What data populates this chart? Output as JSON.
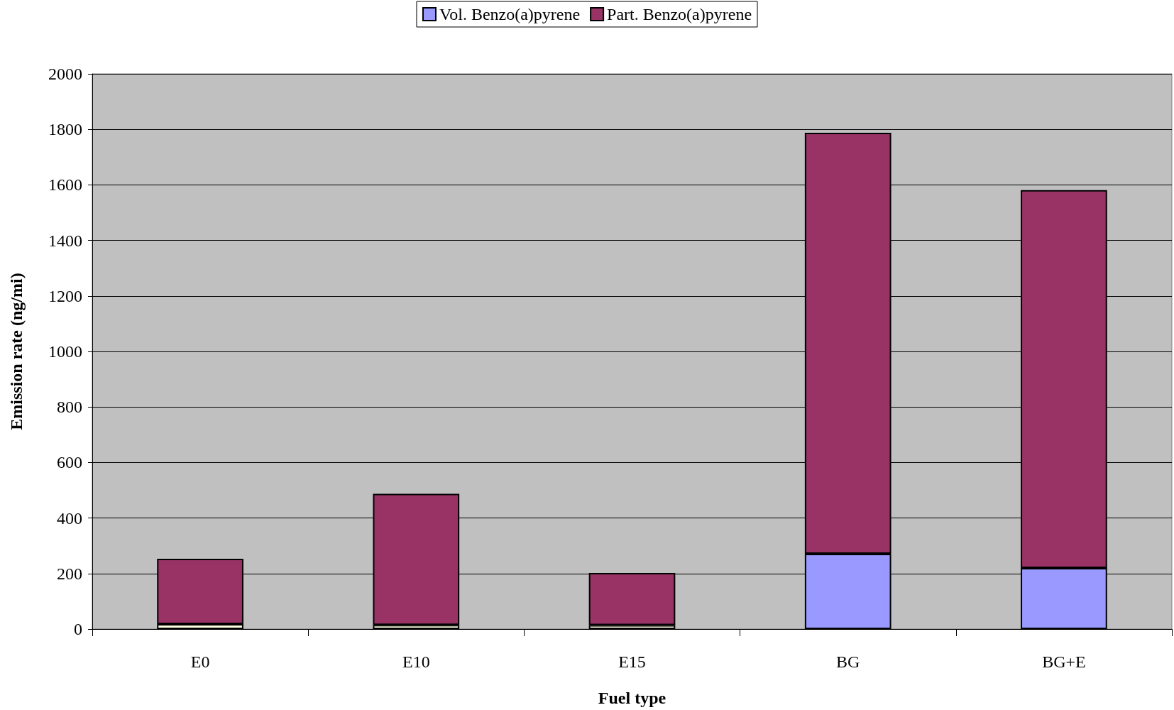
{
  "chart_data": {
    "type": "bar",
    "stacked": true,
    "xlabel": "Fuel type",
    "ylabel": "Emission rate (ng/mi)",
    "categories": [
      "E0",
      "E10",
      "E15",
      "BG",
      "BG+E"
    ],
    "series": [
      {
        "name": "Vol. Benzo(a)pyrene",
        "color": "#9999ff",
        "colors": [
          "#ffffe0",
          "#ffffe0",
          "#ffffe0",
          "#9999ff",
          "#9999ff"
        ],
        "values": [
          18,
          15,
          14,
          271,
          220
        ]
      },
      {
        "name": "Part. Benzo(a)pyrene",
        "color": "#993366",
        "values": [
          235,
          472,
          188,
          1517,
          1361
        ]
      }
    ],
    "ylim": [
      0,
      2000
    ],
    "yticks": [
      0,
      200,
      400,
      600,
      800,
      1000,
      1200,
      1400,
      1600,
      1800,
      2000
    ],
    "grid": "y",
    "legend": "top"
  }
}
